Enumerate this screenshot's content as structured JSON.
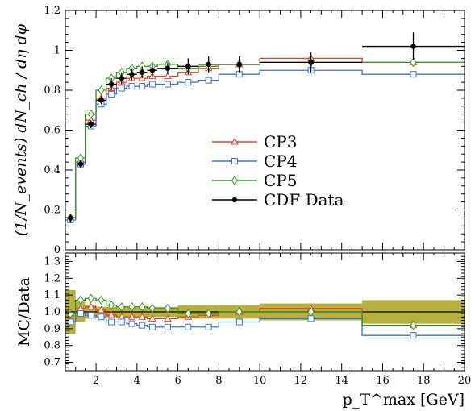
{
  "chart_data": [
    {
      "type": "line",
      "title": "",
      "xlabel": "p_T^max [GeV]",
      "ylabel": "(1/N_events) dN_ch / dη dφ",
      "xlim": [
        0.5,
        20
      ],
      "ylim": [
        0,
        1.2
      ],
      "x_ticks": [
        "2",
        "4",
        "6",
        "8",
        "10",
        "12",
        "14",
        "16",
        "18",
        "20"
      ],
      "y_ticks": [
        "0",
        "0.2",
        "0.4",
        "0.6",
        "0.8",
        "1",
        "1.2"
      ],
      "legend_position": "center-right",
      "bin_edges": [
        0.5,
        1.0,
        1.5,
        2.0,
        2.5,
        3.0,
        3.5,
        4.0,
        4.5,
        5.0,
        6.0,
        7.0,
        8.0,
        10.0,
        15.0,
        20.0
      ],
      "x": [
        0.75,
        1.25,
        1.75,
        2.25,
        2.75,
        3.25,
        3.75,
        4.25,
        4.75,
        5.5,
        6.5,
        7.5,
        9.0,
        12.5,
        17.5
      ],
      "series": [
        {
          "name": "CP3",
          "color": "#e8401c",
          "marker": "triangle",
          "values": [
            0.16,
            0.44,
            0.65,
            0.76,
            0.81,
            0.84,
            0.86,
            0.86,
            0.87,
            0.87,
            0.89,
            0.91,
            0.93,
            0.96,
            0.94
          ]
        },
        {
          "name": "CP4",
          "color": "#3a6fe8",
          "marker": "square",
          "values": [
            0.15,
            0.43,
            0.62,
            0.73,
            0.78,
            0.81,
            0.82,
            0.82,
            0.83,
            0.83,
            0.84,
            0.85,
            0.88,
            0.9,
            0.88
          ]
        },
        {
          "name": "CP5",
          "color": "#2e9a1c",
          "marker": "diamond",
          "values": [
            0.16,
            0.46,
            0.68,
            0.8,
            0.86,
            0.89,
            0.91,
            0.92,
            0.92,
            0.93,
            0.91,
            0.92,
            0.93,
            0.94,
            0.94
          ]
        },
        {
          "name": "CDF Data",
          "color": "#000000",
          "marker": "circle",
          "values": [
            0.16,
            0.43,
            0.63,
            0.75,
            0.83,
            0.86,
            0.88,
            0.89,
            0.9,
            0.91,
            0.92,
            0.93,
            0.93,
            0.94,
            1.02
          ],
          "errors": [
            0.02,
            0.02,
            0.02,
            0.02,
            0.03,
            0.03,
            0.03,
            0.03,
            0.03,
            0.03,
            0.04,
            0.04,
            0.04,
            0.05,
            0.07
          ]
        }
      ]
    },
    {
      "type": "line",
      "title": "",
      "xlabel": "p_T^max [GeV]",
      "ylabel": "MC/Data",
      "xlim": [
        0.5,
        20
      ],
      "ylim": [
        0.65,
        1.35
      ],
      "x_ticks": [
        "2",
        "4",
        "6",
        "8",
        "10",
        "12",
        "14",
        "16",
        "18",
        "20"
      ],
      "y_ticks": [
        "0.7",
        "0.8",
        "0.9",
        "1.0",
        "1.1",
        "1.2",
        "1.3"
      ],
      "reference_line": 1.0,
      "band_color": "#b5b040",
      "band_halfwidth": [
        0.13,
        0.06,
        0.04,
        0.03,
        0.03,
        0.03,
        0.03,
        0.03,
        0.03,
        0.03,
        0.04,
        0.04,
        0.04,
        0.05,
        0.07
      ],
      "x": [
        0.75,
        1.25,
        1.75,
        2.25,
        2.75,
        3.25,
        3.75,
        4.25,
        4.75,
        5.5,
        6.5,
        7.5,
        9.0,
        12.5,
        17.5
      ],
      "series": [
        {
          "name": "CP3",
          "color": "#e8401c",
          "marker": "triangle",
          "values": [
            0.99,
            1.02,
            1.03,
            1.01,
            0.98,
            0.97,
            0.97,
            0.97,
            0.96,
            0.96,
            0.97,
            0.98,
            1.0,
            1.02,
            0.92
          ]
        },
        {
          "name": "CP4",
          "color": "#3a6fe8",
          "marker": "square",
          "values": [
            0.94,
            0.99,
            0.98,
            0.97,
            0.94,
            0.94,
            0.93,
            0.92,
            0.91,
            0.91,
            0.91,
            0.91,
            0.94,
            0.96,
            0.86
          ]
        },
        {
          "name": "CP5",
          "color": "#2e9a1c",
          "marker": "diamond",
          "values": [
            0.99,
            1.07,
            1.08,
            1.07,
            1.04,
            1.03,
            1.03,
            1.03,
            1.02,
            1.02,
            0.99,
            0.99,
            1.0,
            1.0,
            0.92
          ]
        }
      ]
    }
  ]
}
